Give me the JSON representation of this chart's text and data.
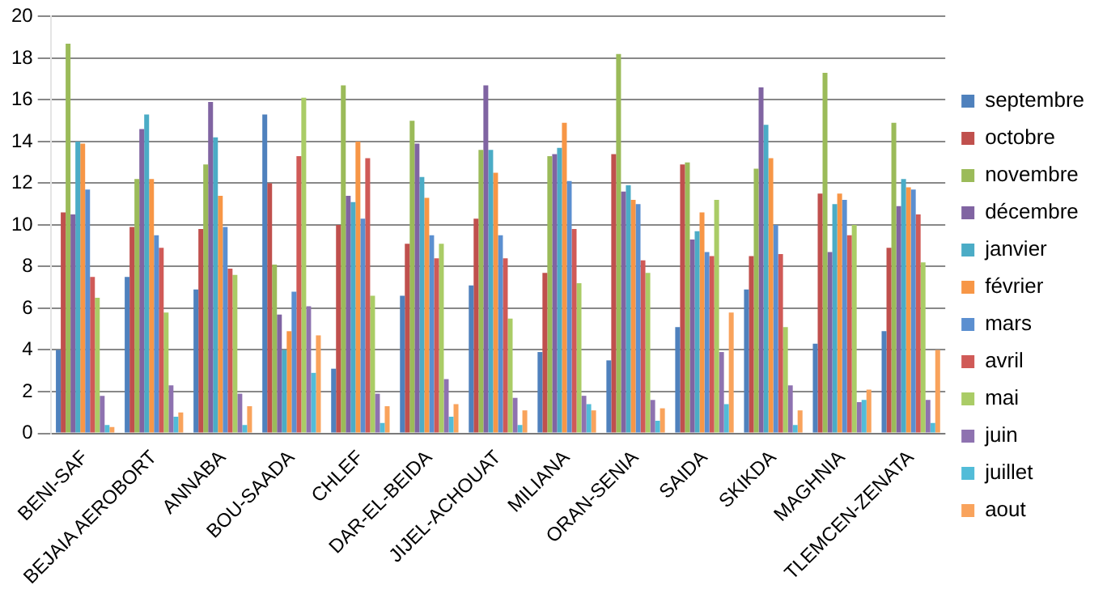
{
  "chart_data": {
    "type": "bar",
    "categories": [
      "BENI-SAF",
      "BEJAIA AEROBORT",
      "ANNABA",
      "BOU-SAADA",
      "CHLEF",
      "DAR-EL-BEIDA",
      "JIJEL-ACHOUAT",
      "MILIANA",
      "ORAN-SENIA",
      "SAIDA",
      "SKIKDA",
      "MAGHNIA",
      "TLEMCEN-ZENATA"
    ],
    "series": [
      {
        "name": "septembre",
        "color": "#4f81bd",
        "values": [
          4.0,
          7.5,
          6.9,
          15.3,
          3.1,
          6.6,
          7.1,
          3.9,
          3.5,
          5.1,
          6.9,
          4.3,
          4.9
        ]
      },
      {
        "name": "octobre",
        "color": "#c0504d",
        "values": [
          10.6,
          9.9,
          9.8,
          12.0,
          10.0,
          9.1,
          10.3,
          7.7,
          13.4,
          12.9,
          8.5,
          11.5,
          8.9
        ]
      },
      {
        "name": "novembre",
        "color": "#9bbb59",
        "values": [
          18.7,
          12.2,
          12.9,
          8.1,
          16.7,
          15.0,
          13.6,
          13.3,
          18.2,
          13.0,
          12.7,
          17.3,
          14.9
        ]
      },
      {
        "name": "décembre",
        "color": "#8064a2",
        "values": [
          10.5,
          14.6,
          15.9,
          5.7,
          11.4,
          13.9,
          16.7,
          13.4,
          11.6,
          9.3,
          16.6,
          8.7,
          10.9
        ]
      },
      {
        "name": "janvier",
        "color": "#4bacc6",
        "values": [
          14.0,
          15.3,
          14.2,
          4.0,
          11.1,
          12.3,
          13.6,
          13.7,
          11.9,
          9.7,
          14.8,
          11.0,
          12.2
        ]
      },
      {
        "name": "février",
        "color": "#f79646",
        "values": [
          13.9,
          12.2,
          11.4,
          4.9,
          14.0,
          11.3,
          12.5,
          14.9,
          11.2,
          10.6,
          13.2,
          11.5,
          11.8
        ]
      },
      {
        "name": "mars",
        "color": "#5b8fd0",
        "values": [
          11.7,
          9.5,
          9.9,
          6.8,
          10.3,
          9.5,
          9.5,
          12.1,
          11.0,
          8.7,
          10.0,
          11.2,
          11.7
        ]
      },
      {
        "name": "avril",
        "color": "#d05a57",
        "values": [
          7.5,
          8.9,
          7.9,
          13.3,
          13.2,
          8.4,
          8.4,
          9.8,
          8.3,
          8.5,
          8.6,
          9.5,
          10.5
        ]
      },
      {
        "name": "mai",
        "color": "#aacc66",
        "values": [
          6.5,
          5.8,
          7.6,
          16.1,
          6.6,
          9.1,
          5.5,
          7.2,
          7.7,
          11.2,
          5.1,
          10.0,
          8.2
        ]
      },
      {
        "name": "juin",
        "color": "#8e72b0",
        "values": [
          1.8,
          2.3,
          1.9,
          6.1,
          1.9,
          2.6,
          1.7,
          1.8,
          1.6,
          3.9,
          2.3,
          1.5,
          1.6
        ]
      },
      {
        "name": "juillet",
        "color": "#52bcd8",
        "values": [
          0.4,
          0.8,
          0.4,
          2.9,
          0.5,
          0.8,
          0.4,
          1.4,
          0.6,
          1.4,
          0.4,
          1.6,
          0.5
        ]
      },
      {
        "name": "aout",
        "color": "#f9a35c",
        "values": [
          0.3,
          1.0,
          1.3,
          4.7,
          1.3,
          1.4,
          1.1,
          1.1,
          1.2,
          5.8,
          1.1,
          2.1,
          4.0
        ]
      }
    ],
    "ylim": [
      0,
      20
    ],
    "yticks": [
      0,
      2,
      4,
      6,
      8,
      10,
      12,
      14,
      16,
      18,
      20
    ],
    "grid": "y",
    "legend": "right"
  }
}
